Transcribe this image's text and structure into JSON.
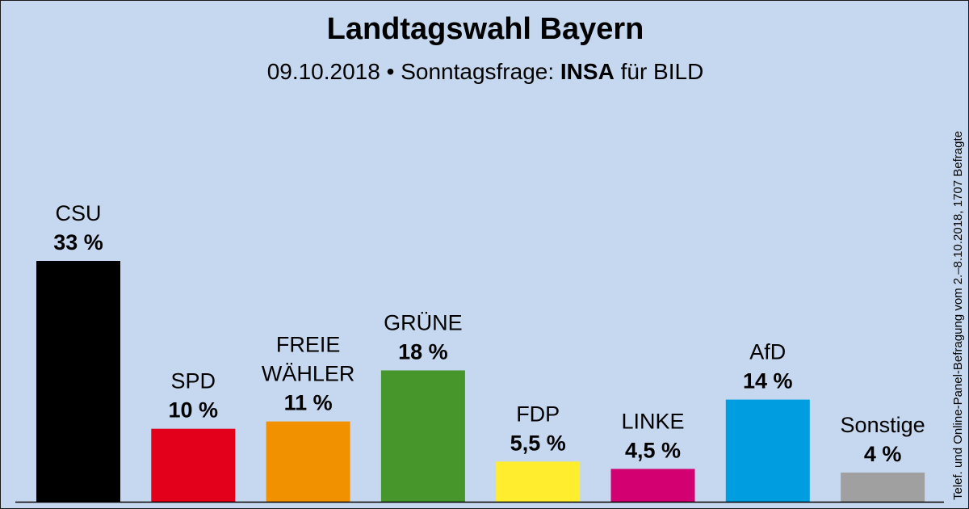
{
  "title": "Landtagswahl Bayern",
  "subtitle": {
    "date": "09.10.2018",
    "separator": "•",
    "type": "Sonntagsfrage:",
    "institute": "INSA",
    "client": "für BILD"
  },
  "side_note": "Telef. und Online-Panel-Befragung vom 2.–8.10.2018, 1707 Befragte",
  "chart_data": {
    "type": "bar",
    "title": "Landtagswahl Bayern",
    "xlabel": "",
    "ylabel": "",
    "ylim": [
      0,
      33
    ],
    "grid": false,
    "categories": [
      "CSU",
      "SPD",
      "FREIE WÄHLER",
      "GRÜNE",
      "FDP",
      "LINKE",
      "AfD",
      "Sonstige"
    ],
    "category_lines": [
      [
        "CSU"
      ],
      [
        "SPD"
      ],
      [
        "FREIE",
        "WÄHLER"
      ],
      [
        "GRÜNE"
      ],
      [
        "FDP"
      ],
      [
        "LINKE"
      ],
      [
        "AfD"
      ],
      [
        "Sonstige"
      ]
    ],
    "values": [
      33,
      10,
      11,
      18,
      5.5,
      4.5,
      14,
      4
    ],
    "value_labels": [
      "33 %",
      "10 %",
      "11 %",
      "18 %",
      "5,5 %",
      "4,5 %",
      "14 %",
      "4 %"
    ],
    "colors": [
      "#000000",
      "#e3001b",
      "#f29100",
      "#46962b",
      "#ffed2e",
      "#d30072",
      "#009ee0",
      "#a0a0a0"
    ]
  }
}
